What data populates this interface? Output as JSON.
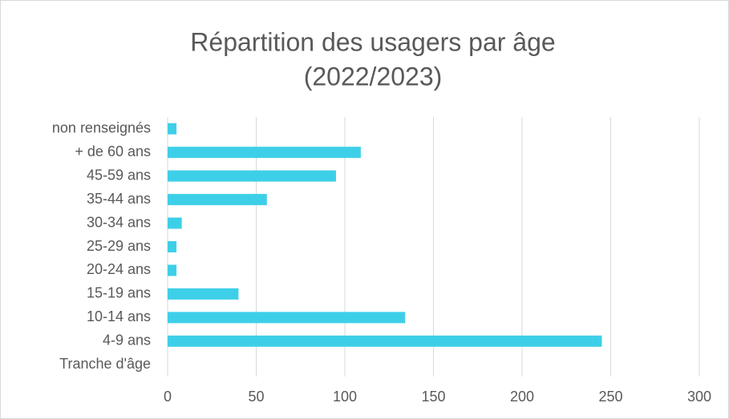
{
  "chart_data": {
    "type": "bar",
    "orientation": "horizontal",
    "title": [
      "Répartition des usagers par âge",
      "(2022/2023)"
    ],
    "categories": [
      "Tranche d'âge",
      "4-9 ans",
      "10-14 ans",
      "15-19 ans",
      "20-24 ans",
      "25-29 ans",
      "30-34 ans",
      "35-44 ans",
      "45-59 ans",
      "+ de 60 ans",
      "non renseignés"
    ],
    "values": [
      null,
      245,
      134,
      40,
      5,
      5,
      8,
      56,
      95,
      109,
      5
    ],
    "color": "#3ecfe8",
    "xlim": [
      0,
      300
    ],
    "xticks": [
      0,
      50,
      100,
      150,
      200,
      250,
      300
    ],
    "grid": true
  }
}
